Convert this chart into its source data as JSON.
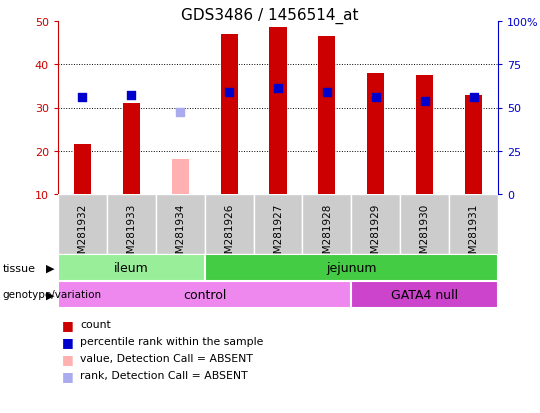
{
  "title": "GDS3486 / 1456514_at",
  "samples": [
    "GSM281932",
    "GSM281933",
    "GSM281934",
    "GSM281926",
    "GSM281927",
    "GSM281928",
    "GSM281929",
    "GSM281930",
    "GSM281931"
  ],
  "count_values": [
    21.5,
    31.0,
    null,
    47.0,
    48.5,
    46.5,
    38.0,
    37.5,
    33.0
  ],
  "count_absent": [
    null,
    null,
    18.0,
    null,
    null,
    null,
    null,
    null,
    null
  ],
  "percentile_values": [
    32.5,
    33.0,
    null,
    33.5,
    34.5,
    33.5,
    32.5,
    31.5,
    32.5
  ],
  "percentile_absent": [
    null,
    null,
    29.0,
    null,
    null,
    null,
    null,
    null,
    null
  ],
  "ylim": [
    10,
    50
  ],
  "y2lim": [
    0,
    100
  ],
  "yticks": [
    10,
    20,
    30,
    40,
    50
  ],
  "y2ticks": [
    0,
    25,
    50,
    75,
    100
  ],
  "y2ticklabels": [
    "0",
    "25",
    "50",
    "75",
    "100%"
  ],
  "bar_color": "#cc0000",
  "bar_absent_color": "#ffb0b0",
  "dot_color": "#0000cc",
  "dot_absent_color": "#aaaaee",
  "tissue_groups": [
    {
      "label": "ileum",
      "start": 0,
      "end": 3,
      "color": "#99ee99"
    },
    {
      "label": "jejunum",
      "start": 3,
      "end": 9,
      "color": "#44cc44"
    }
  ],
  "genotype_groups": [
    {
      "label": "control",
      "start": 0,
      "end": 6,
      "color": "#ee88ee"
    },
    {
      "label": "GATA4 null",
      "start": 6,
      "end": 9,
      "color": "#cc44cc"
    }
  ],
  "tissue_label": "tissue",
  "genotype_label": "genotype/variation",
  "legend_items": [
    {
      "label": "count",
      "color": "#cc0000"
    },
    {
      "label": "percentile rank within the sample",
      "color": "#0000cc"
    },
    {
      "label": "value, Detection Call = ABSENT",
      "color": "#ffb0b0"
    },
    {
      "label": "rank, Detection Call = ABSENT",
      "color": "#aaaaee"
    }
  ],
  "bar_width": 0.35,
  "dot_size": 35,
  "axis_color_left": "#cc0000",
  "axis_color_right": "#0000cc",
  "tick_label_bg": "#cccccc",
  "grid_linestyle": "dotted"
}
